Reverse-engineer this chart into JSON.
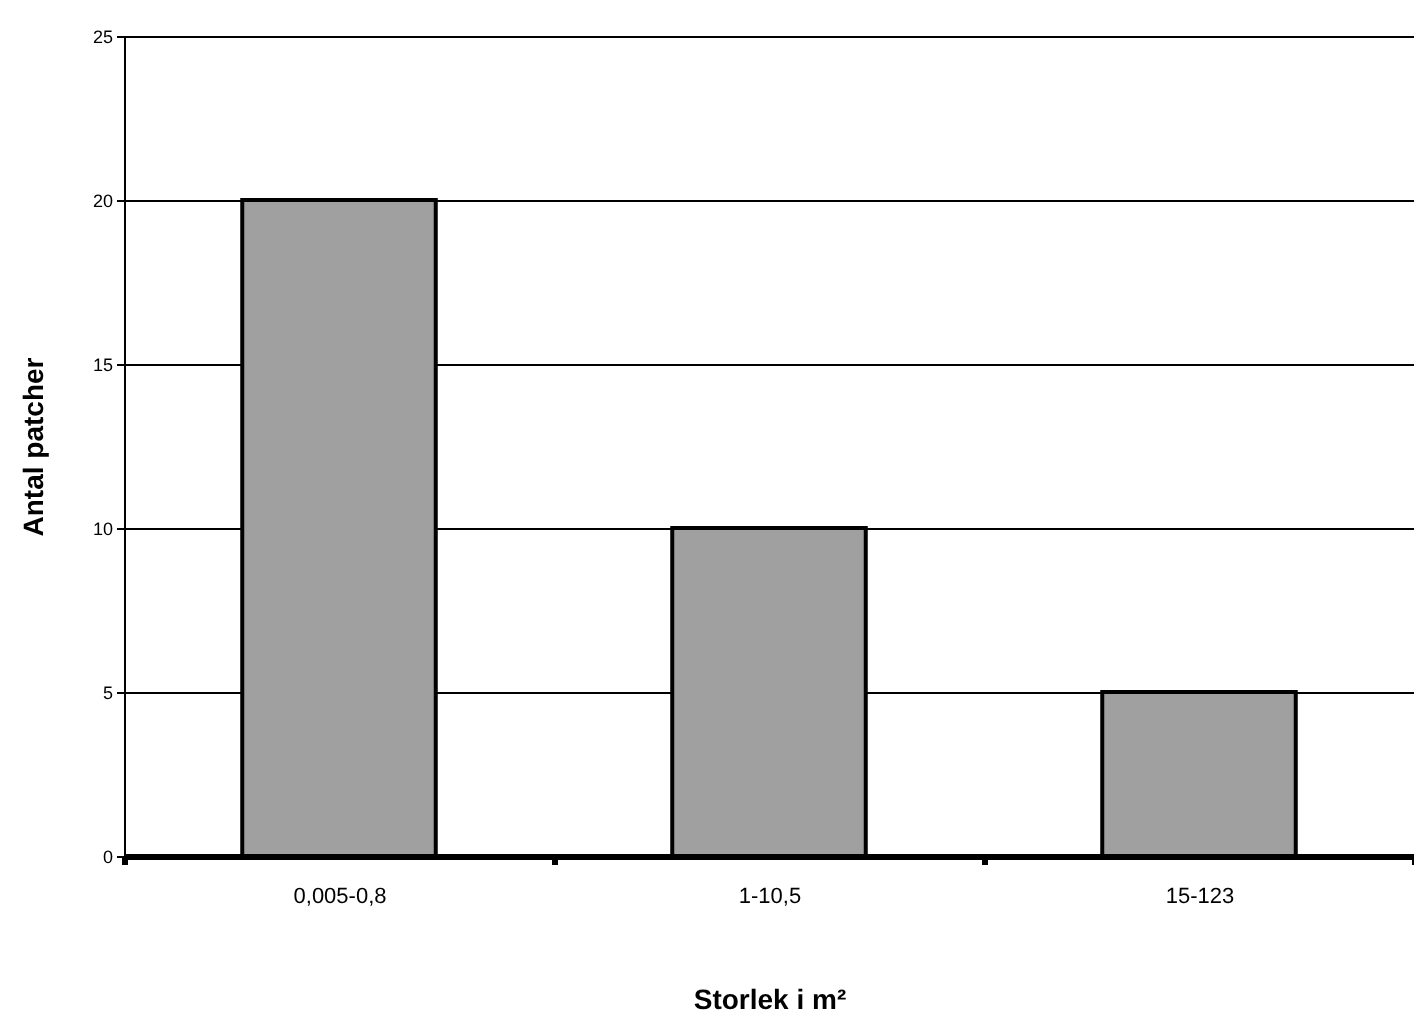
{
  "chart_data": {
    "type": "bar",
    "xlabel": "Storlek i m²",
    "ylabel": "Antal patcher",
    "categories": [
      "0,005-0,8",
      "1-10,5",
      "15-123"
    ],
    "values": [
      20,
      10,
      5
    ],
    "color": "#a0a0a0",
    "ylim": [
      0,
      25
    ],
    "yticks": [
      0,
      5,
      10,
      15,
      20,
      25
    ],
    "grid": "y"
  }
}
